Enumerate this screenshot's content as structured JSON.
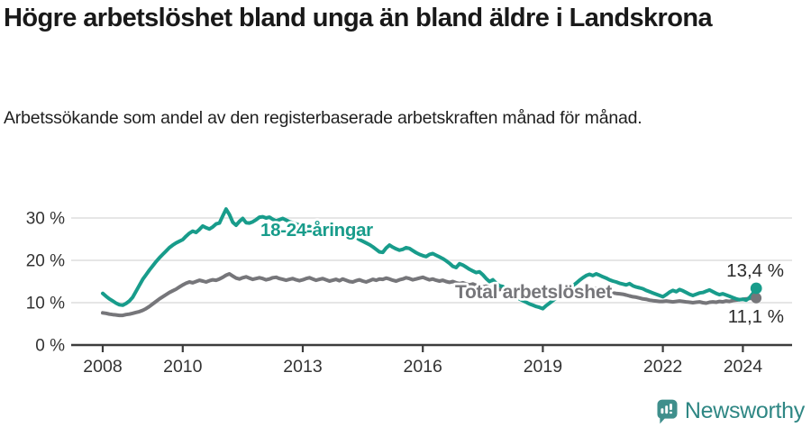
{
  "title": "Högre arbetslöshet bland unga än bland äldre i Landskrona",
  "subtitle": "Arbetssökande som andel av den registerbaserade arbetskraften månad för månad.",
  "footer": {
    "brand": "Newsworthy"
  },
  "colors": {
    "young_line": "#189c8b",
    "total_line": "#76767a",
    "grid": "#e3e3e3",
    "axis": "#3c3c3c",
    "tick_text": "#333333",
    "value_text": "#2a2a2a",
    "brand_teal": "#3f8f8c",
    "brand_text": "#2f8784"
  },
  "chart_data": {
    "type": "line",
    "title": "Högre arbetslöshet bland unga än bland äldre i Landskrona",
    "subtitle": "Arbetssökande som andel av den registerbaserade arbetskraften månad för månad.",
    "x_start_year": 2008,
    "x_step_months": 1,
    "x_end": "2024",
    "x_ticks": [
      2008,
      2010,
      2013,
      2016,
      2019,
      2022,
      2024
    ],
    "y_ticks": [
      {
        "v": 0,
        "label": "0 %"
      },
      {
        "v": 10,
        "label": "10 %"
      },
      {
        "v": 20,
        "label": "20 %"
      },
      {
        "v": 30,
        "label": "30 %"
      }
    ],
    "ylim": [
      0,
      33.5
    ],
    "grid": true,
    "unit": "%",
    "series": [
      {
        "name": "18-24-åringar",
        "color": "#189c8b",
        "end_label": "13,4 %",
        "end_value": 13.4,
        "values": [
          12.2,
          11.5,
          10.9,
          10.4,
          9.9,
          9.5,
          9.4,
          9.8,
          10.4,
          11.3,
          12.7,
          14.1,
          15.5,
          16.6,
          17.7,
          18.7,
          19.7,
          20.6,
          21.4,
          22.2,
          23.0,
          23.6,
          24.1,
          24.5,
          24.9,
          25.7,
          26.4,
          26.9,
          26.6,
          27.3,
          28.1,
          27.7,
          27.4,
          27.9,
          28.6,
          28.8,
          30.5,
          32.1,
          30.8,
          29.0,
          28.3,
          29.2,
          29.9,
          28.9,
          28.8,
          29.1,
          29.6,
          30.2,
          30.3,
          30.0,
          30.2,
          29.7,
          29.3,
          29.6,
          29.9,
          29.5,
          29.1,
          28.9,
          28.6,
          28.3,
          28.1,
          27.8,
          28.0,
          27.5,
          27.1,
          27.4,
          27.0,
          26.7,
          26.9,
          26.5,
          26.2,
          26.4,
          26.2,
          25.8,
          25.5,
          25.2,
          25.4,
          24.9,
          24.5,
          24.1,
          23.7,
          23.2,
          22.6,
          22.0,
          21.9,
          22.9,
          23.6,
          23.1,
          22.7,
          22.4,
          22.6,
          23.0,
          22.8,
          22.3,
          21.8,
          21.4,
          21.1,
          20.9,
          21.4,
          21.6,
          21.2,
          20.8,
          20.4,
          19.9,
          19.3,
          18.6,
          18.3,
          19.2,
          18.9,
          18.4,
          17.9,
          17.5,
          17.1,
          17.3,
          16.6,
          15.7,
          15.0,
          15.4,
          14.6,
          14.0,
          13.8,
          13.2,
          12.6,
          12.0,
          11.4,
          10.9,
          10.5,
          10.1,
          9.7,
          9.4,
          9.1,
          8.9,
          8.6,
          9.3,
          9.9,
          10.5,
          11.1,
          11.7,
          12.2,
          12.8,
          13.4,
          14.0,
          14.6,
          15.3,
          15.9,
          16.4,
          16.7,
          16.4,
          16.8,
          16.5,
          16.1,
          15.8,
          15.4,
          15.1,
          14.9,
          14.6,
          14.4,
          14.2,
          14.5,
          14.0,
          13.7,
          13.5,
          13.3,
          12.9,
          12.6,
          12.3,
          12.0,
          11.7,
          11.4,
          11.9,
          12.5,
          12.9,
          12.6,
          13.1,
          12.8,
          12.4,
          12.0,
          11.7,
          12.0,
          12.3,
          12.4,
          12.7,
          13.0,
          12.6,
          12.2,
          11.9,
          12.1,
          11.8,
          11.5,
          11.2,
          10.9,
          10.7,
          10.8,
          10.6,
          11.2,
          12.2,
          13.4
        ]
      },
      {
        "name": "Total arbetslöshet",
        "color": "#76767a",
        "end_label": "11,1 %",
        "end_value": 11.1,
        "values": [
          7.6,
          7.5,
          7.3,
          7.2,
          7.1,
          7.0,
          7.0,
          7.2,
          7.3,
          7.5,
          7.7,
          7.9,
          8.2,
          8.6,
          9.1,
          9.7,
          10.3,
          10.9,
          11.4,
          11.9,
          12.4,
          12.8,
          13.2,
          13.7,
          14.2,
          14.6,
          14.9,
          14.7,
          15.0,
          15.3,
          15.1,
          14.9,
          15.2,
          15.4,
          15.3,
          15.6,
          16.0,
          16.5,
          16.8,
          16.3,
          15.8,
          15.6,
          15.9,
          16.1,
          15.8,
          15.5,
          15.7,
          15.9,
          15.7,
          15.4,
          15.6,
          15.9,
          16.0,
          15.7,
          15.5,
          15.3,
          15.5,
          15.7,
          15.4,
          15.2,
          15.4,
          15.7,
          15.9,
          15.6,
          15.3,
          15.5,
          15.7,
          15.4,
          15.1,
          15.3,
          15.5,
          15.2,
          15.6,
          15.3,
          15.0,
          14.9,
          15.2,
          15.4,
          15.1,
          14.9,
          15.2,
          15.5,
          15.3,
          15.6,
          15.5,
          15.8,
          15.6,
          15.3,
          15.1,
          15.4,
          15.6,
          15.9,
          15.7,
          15.4,
          15.6,
          15.8,
          16.0,
          15.7,
          15.4,
          15.6,
          15.3,
          15.1,
          15.3,
          15.0,
          14.8,
          15.0,
          14.7,
          14.5,
          14.7,
          14.4,
          14.2,
          14.4,
          14.1,
          13.9,
          13.7,
          13.9,
          13.6,
          13.4,
          13.2,
          13.1,
          13.3,
          13.1,
          12.9,
          12.7,
          12.9,
          12.6,
          12.4,
          12.5,
          12.3,
          12.4,
          12.2,
          12.3,
          12.4,
          12.2,
          12.1,
          12.3,
          12.1,
          12.0,
          12.2,
          12.0,
          11.9,
          12.1,
          12.2,
          12.4,
          12.6,
          12.9,
          13.2,
          13.5,
          13.3,
          13.1,
          12.9,
          12.7,
          12.5,
          12.3,
          12.2,
          12.1,
          12.0,
          11.8,
          11.6,
          11.4,
          11.3,
          11.1,
          10.9,
          10.8,
          10.6,
          10.5,
          10.4,
          10.3,
          10.3,
          10.4,
          10.3,
          10.2,
          10.3,
          10.4,
          10.3,
          10.2,
          10.1,
          10.0,
          10.1,
          10.2,
          10.0,
          9.9,
          10.1,
          10.2,
          10.1,
          10.3,
          10.2,
          10.4,
          10.3,
          10.5,
          10.6,
          10.7,
          10.8,
          10.9,
          11.0,
          11.0,
          11.1
        ]
      }
    ]
  }
}
